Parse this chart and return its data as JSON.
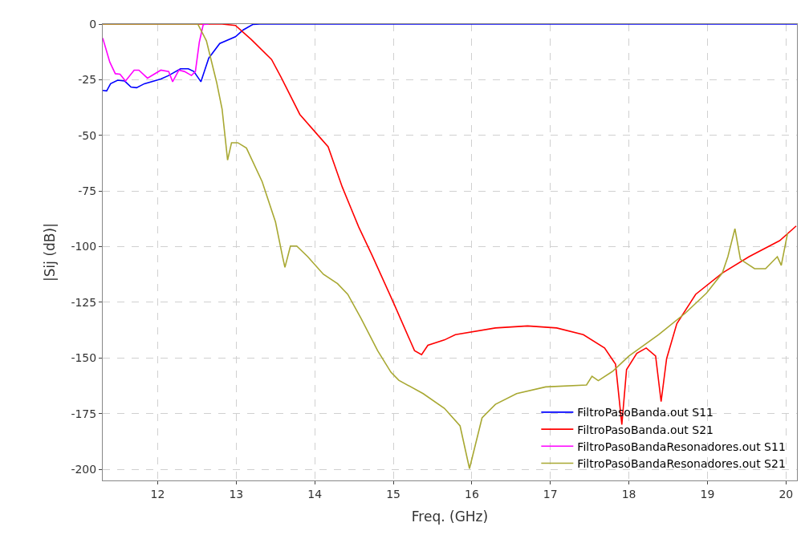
{
  "chart_data": {
    "type": "line",
    "xlabel": "Freq. (GHz)",
    "ylabel": "|Sij (dB)|",
    "xlim": [
      11.3,
      20.14
    ],
    "xticks": [
      12,
      13,
      14,
      15,
      16,
      17,
      18,
      19,
      20
    ],
    "ylim": [
      -205,
      0
    ],
    "yticks": [
      -200,
      -175,
      -150,
      -125,
      -100,
      -75,
      -50,
      -25,
      0
    ],
    "grid": true,
    "legend": "bottom right",
    "marker": "none",
    "line_style": "solid",
    "series": [
      {
        "name": "FiltroPasoBanda.out S11",
        "color": "#0000ff",
        "x": [
          11.3,
          11.35,
          11.4,
          11.49,
          11.58,
          11.66,
          11.73,
          11.83,
          12.04,
          12.14,
          12.29,
          12.39,
          12.46,
          12.55,
          12.65,
          12.79,
          12.99,
          13.09,
          13.21,
          13.3,
          20.14
        ],
        "values": [
          -29.8,
          -30,
          -26.8,
          -25.2,
          -25.6,
          -28.3,
          -28.6,
          -26.8,
          -24.7,
          -23.1,
          -20.1,
          -20.1,
          -21.3,
          -25.9,
          -15.3,
          -8.7,
          -5.7,
          -2.6,
          -0.2,
          0,
          0
        ]
      },
      {
        "name": "FiltroPasoBanda.out S21",
        "color": "#ff0000",
        "x": [
          11.3,
          12.82,
          12.99,
          13.19,
          13.45,
          13.57,
          13.81,
          14.05,
          14.17,
          14.35,
          14.56,
          14.73,
          15.0,
          15.27,
          15.36,
          15.44,
          15.65,
          15.79,
          16.3,
          16.71,
          17.08,
          17.42,
          17.69,
          17.83,
          17.91,
          17.97,
          18.1,
          18.22,
          18.34,
          18.41,
          18.48,
          18.61,
          18.85,
          19.19,
          19.53,
          19.92,
          20.13
        ],
        "values": [
          0,
          0,
          -0.6,
          -6.9,
          -15.9,
          -23.8,
          -40.6,
          -50.3,
          -55.1,
          -73.2,
          -91.2,
          -103.9,
          -125,
          -146.7,
          -148.5,
          -144.3,
          -141.9,
          -139.5,
          -136.5,
          -135.6,
          -136.5,
          -139.5,
          -145.5,
          -152.8,
          -179.9,
          -155.2,
          -147.9,
          -145.5,
          -149.1,
          -169.6,
          -150.3,
          -134.6,
          -121.4,
          -111.8,
          -104.5,
          -97.3,
          -90.7
        ]
      },
      {
        "name": "FiltroPasoBandaResonadores.out S11",
        "color": "#ff00ff",
        "x": [
          11.3,
          11.39,
          11.46,
          11.52,
          11.59,
          11.7,
          11.76,
          11.87,
          12.04,
          12.14,
          12.19,
          12.27,
          12.34,
          12.43,
          12.48,
          12.53,
          12.58,
          12.65
        ],
        "values": [
          -6.3,
          -17.1,
          -22.3,
          -22.5,
          -25.6,
          -20.7,
          -20.7,
          -24.3,
          -20.7,
          -21.3,
          -25.9,
          -20.7,
          -21.3,
          -23.1,
          -21.3,
          -8.1,
          -0.2,
          0
        ]
      },
      {
        "name": "FiltroPasoBandaResonadores.out S21",
        "color": "#a8a832",
        "x": [
          11.3,
          12.51,
          12.62,
          12.75,
          12.82,
          12.89,
          12.94,
          13.02,
          13.13,
          13.33,
          13.5,
          13.59,
          13.62,
          13.69,
          13.77,
          13.91,
          14.11,
          14.29,
          14.42,
          14.59,
          14.8,
          14.97,
          15.07,
          15.38,
          15.65,
          15.85,
          15.97,
          16.13,
          16.3,
          16.57,
          16.94,
          17.46,
          17.53,
          17.61,
          17.8,
          18.0,
          18.38,
          18.72,
          18.99,
          19.19,
          19.26,
          19.35,
          19.42,
          19.6,
          19.74,
          19.89,
          19.94,
          20.02
        ],
        "values": [
          0,
          0,
          -7.5,
          -26.1,
          -38.2,
          -61.1,
          -53.3,
          -53.3,
          -55.7,
          -70.8,
          -88.9,
          -104.5,
          -109.3,
          -99.7,
          -99.7,
          -104.5,
          -112.4,
          -116.6,
          -121.4,
          -132.3,
          -146.7,
          -156.4,
          -160,
          -166,
          -172.6,
          -180.5,
          -199.7,
          -176.9,
          -170.8,
          -166,
          -163,
          -162.1,
          -158.2,
          -160.2,
          -155.8,
          -149.1,
          -139.5,
          -129.8,
          -120.8,
          -111.8,
          -104.5,
          -91.9,
          -105.7,
          -109.9,
          -109.9,
          -104.5,
          -108.4,
          -94
        ]
      }
    ]
  }
}
